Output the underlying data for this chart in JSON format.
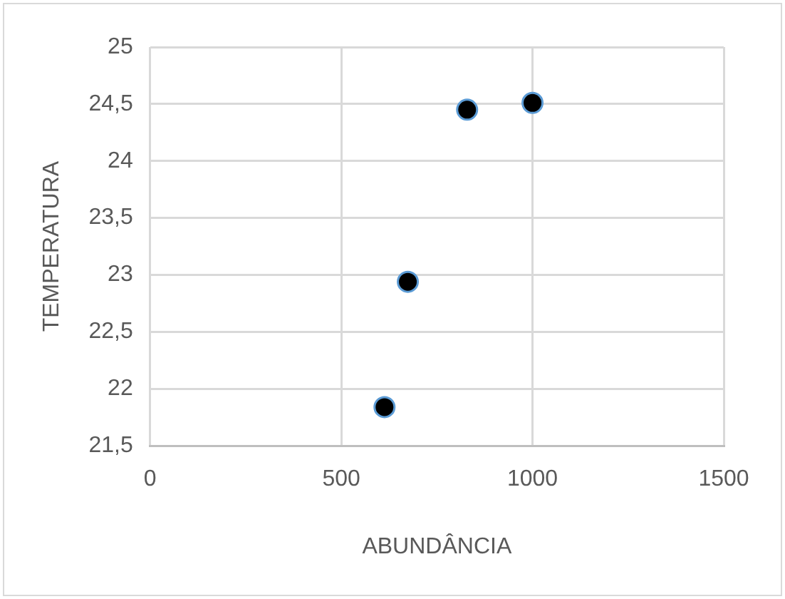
{
  "chart_data": {
    "type": "scatter",
    "xlabel": "ABUNDÂNCIA",
    "ylabel": "TEMPERATURA",
    "series": [
      {
        "color": "#000000",
        "x": [
          829,
          1000,
          674,
          613
        ],
        "values": [
          24.45,
          24.51,
          22.94,
          21.84
        ]
      }
    ],
    "xlim": [
      0,
      1500
    ],
    "xticks": [
      0,
      500,
      1000,
      1500
    ],
    "ylim": [
      21.5,
      25
    ],
    "yticks": [
      {
        "value": 21.5,
        "label": "21,5"
      },
      22,
      {
        "value": 22.5,
        "label": "22,5"
      },
      23,
      {
        "value": 23.5,
        "label": "23,5"
      },
      24,
      {
        "value": 24.5,
        "label": "24,5"
      },
      25
    ],
    "grid": true,
    "legend": false,
    "marker": "circle"
  }
}
